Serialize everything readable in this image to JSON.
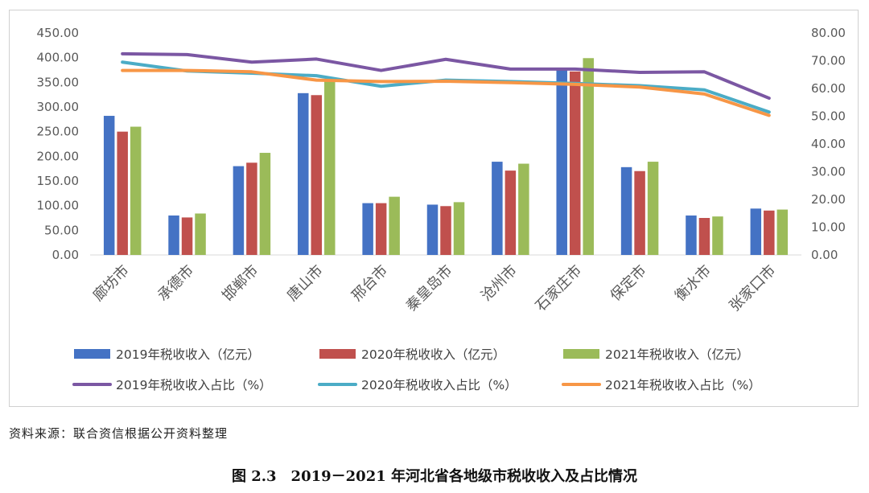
{
  "chart_data": {
    "type": "bar",
    "categories": [
      "廊坊市",
      "承德市",
      "邯郸市",
      "唐山市",
      "邢台市",
      "秦皇岛市",
      "沧州市",
      "石家庄市",
      "保定市",
      "衡水市",
      "张家口市"
    ],
    "bar_series": [
      {
        "name": "2019年税收收入（亿元）",
        "color": "#4472C4",
        "values": [
          282,
          80,
          180,
          328,
          105,
          102,
          189,
          375,
          178,
          80,
          94
        ]
      },
      {
        "name": "2020年税收收入（亿元）",
        "color": "#C0504D",
        "values": [
          250,
          76,
          187,
          324,
          105,
          99,
          171,
          372,
          170,
          75,
          90
        ]
      },
      {
        "name": "2021年税收收入（亿元）",
        "color": "#9BBB59",
        "values": [
          260,
          84,
          207,
          357,
          118,
          107,
          185,
          399,
          189,
          78,
          92
        ]
      }
    ],
    "line_series": [
      {
        "name": "2019年税收收入占比（%）",
        "color": "#7B57A3",
        "values": [
          72.5,
          72.2,
          69.5,
          70.6,
          66.5,
          70.5,
          67.0,
          67.0,
          65.8,
          66.0,
          56.5
        ]
      },
      {
        "name": "2020年税收收入占比（%）",
        "color": "#4BACC6",
        "values": [
          69.5,
          66.3,
          65.5,
          64.6,
          60.8,
          63.0,
          62.5,
          61.8,
          61.0,
          59.5,
          51.5
        ]
      },
      {
        "name": "2021年税收收入占比（%）",
        "color": "#F79646",
        "values": [
          66.5,
          66.5,
          66.0,
          63.0,
          62.5,
          62.6,
          62.1,
          61.5,
          60.5,
          58.0,
          50.3
        ]
      }
    ],
    "y_left": {
      "min": 0,
      "max": 450,
      "ticks": [
        "0.00",
        "50.00",
        "100.00",
        "150.00",
        "200.00",
        "250.00",
        "300.00",
        "350.00",
        "400.00",
        "450.00"
      ]
    },
    "y_right": {
      "min": 0,
      "max": 80,
      "ticks": [
        "0.00",
        "10.00",
        "20.00",
        "30.00",
        "40.00",
        "50.00",
        "60.00",
        "70.00",
        "80.00"
      ]
    },
    "grid": false,
    "legend_position": "bottom"
  },
  "source_note": "资料来源：联合资信根据公开资料整理",
  "figure_caption": "图 2.3　2019－2021 年河北省各地级市税收收入及占比情况"
}
